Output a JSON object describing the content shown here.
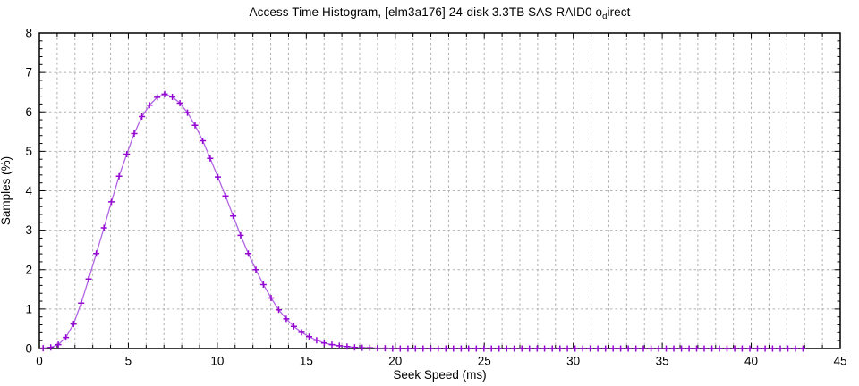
{
  "title": {
    "pre": "Access Time Histogram, [elm3a176] 24-disk 3.3TB SAS RAID0 o",
    "sub": "d",
    "post": "irect"
  },
  "chart_data": {
    "type": "line",
    "title": "Access Time Histogram, [elm3a176] 24-disk 3.3TB SAS RAID0 o_direct",
    "xlabel": "Seek Speed (ms)",
    "ylabel": "Samples (%)",
    "xlim": [
      0,
      45
    ],
    "ylim": [
      0,
      8
    ],
    "x_ticks": [
      0,
      5,
      10,
      15,
      20,
      25,
      30,
      35,
      40,
      45
    ],
    "y_ticks": [
      0,
      1,
      2,
      3,
      4,
      5,
      6,
      7,
      8
    ],
    "x_minor_step": 1,
    "y_minor_step": 0.2,
    "grid": "dashed gray at every 1 ms (x) and every 1 % (y), ticks mirrored on all four borders",
    "legend": "none",
    "marker": "plus",
    "colors": {
      "line": "#b164e3",
      "marker": "#9406d2",
      "grid": "#b0b0b0",
      "axis": "#000000",
      "background": "#ffffff"
    },
    "series": [
      {
        "name": "samples",
        "points": [
          [
            0.21,
            0.01
          ],
          [
            0.64,
            0.03
          ],
          [
            1.06,
            0.1
          ],
          [
            1.49,
            0.28
          ],
          [
            1.92,
            0.62
          ],
          [
            2.35,
            1.15
          ],
          [
            2.77,
            1.76
          ],
          [
            3.2,
            2.41
          ],
          [
            3.63,
            3.06
          ],
          [
            4.05,
            3.72
          ],
          [
            4.48,
            4.37
          ],
          [
            4.91,
            4.93
          ],
          [
            5.33,
            5.45
          ],
          [
            5.76,
            5.88
          ],
          [
            6.19,
            6.17
          ],
          [
            6.62,
            6.37
          ],
          [
            7.04,
            6.45
          ],
          [
            7.47,
            6.38
          ],
          [
            7.9,
            6.22
          ],
          [
            8.32,
            5.98
          ],
          [
            8.75,
            5.66
          ],
          [
            9.18,
            5.27
          ],
          [
            9.6,
            4.82
          ],
          [
            10.03,
            4.35
          ],
          [
            10.46,
            3.87
          ],
          [
            10.89,
            3.36
          ],
          [
            11.31,
            2.87
          ],
          [
            11.74,
            2.41
          ],
          [
            12.17,
            2.0
          ],
          [
            12.59,
            1.62
          ],
          [
            13.02,
            1.28
          ],
          [
            13.45,
            0.98
          ],
          [
            13.87,
            0.75
          ],
          [
            14.3,
            0.56
          ],
          [
            14.73,
            0.41
          ],
          [
            15.16,
            0.3
          ],
          [
            15.58,
            0.21
          ],
          [
            16.01,
            0.14
          ],
          [
            16.44,
            0.1
          ],
          [
            16.86,
            0.07
          ],
          [
            17.29,
            0.05
          ],
          [
            17.72,
            0.03
          ],
          [
            18.14,
            0.02
          ],
          [
            18.57,
            0.02
          ],
          [
            19.0,
            0.01
          ],
          [
            19.43,
            0.01
          ],
          [
            19.85,
            0.0
          ],
          [
            20.28,
            0
          ],
          [
            20.71,
            0
          ],
          [
            21.13,
            0
          ],
          [
            21.56,
            0
          ],
          [
            21.99,
            0
          ],
          [
            22.41,
            0
          ],
          [
            22.84,
            0
          ],
          [
            23.27,
            0
          ],
          [
            23.7,
            0
          ],
          [
            24.12,
            0
          ],
          [
            24.55,
            0
          ],
          [
            24.98,
            0
          ],
          [
            25.4,
            0
          ],
          [
            25.83,
            0
          ],
          [
            26.26,
            0
          ],
          [
            26.68,
            0
          ],
          [
            27.11,
            0
          ],
          [
            27.54,
            0
          ],
          [
            27.97,
            0
          ],
          [
            28.39,
            0
          ],
          [
            28.82,
            0
          ],
          [
            29.25,
            0
          ],
          [
            29.67,
            0
          ],
          [
            30.1,
            0
          ],
          [
            30.53,
            0
          ],
          [
            30.95,
            0
          ],
          [
            31.38,
            0
          ],
          [
            31.81,
            0
          ],
          [
            32.24,
            0
          ],
          [
            32.66,
            0
          ],
          [
            33.09,
            0
          ],
          [
            33.52,
            0
          ],
          [
            33.94,
            0
          ],
          [
            34.37,
            0
          ],
          [
            34.8,
            0
          ],
          [
            35.22,
            0
          ],
          [
            35.65,
            0
          ],
          [
            36.08,
            0
          ],
          [
            36.51,
            0
          ],
          [
            36.93,
            0
          ],
          [
            37.36,
            0
          ],
          [
            37.79,
            0
          ],
          [
            38.21,
            0
          ],
          [
            38.64,
            0
          ],
          [
            39.07,
            0
          ],
          [
            39.49,
            0
          ],
          [
            39.92,
            0
          ],
          [
            40.35,
            0
          ],
          [
            40.78,
            0
          ],
          [
            41.2,
            0
          ],
          [
            41.63,
            0
          ],
          [
            42.06,
            0
          ],
          [
            42.48,
            0
          ],
          [
            42.91,
            0
          ]
        ]
      }
    ]
  }
}
